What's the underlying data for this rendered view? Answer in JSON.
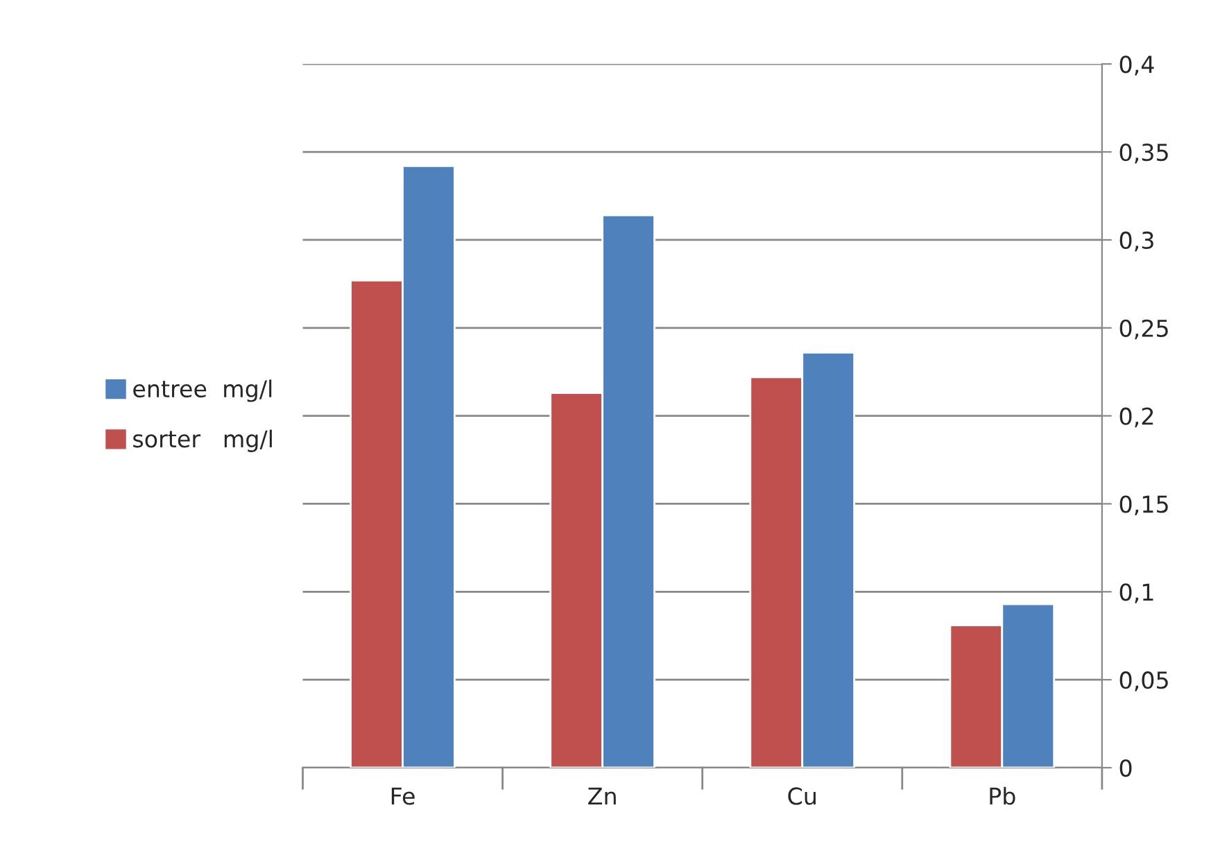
{
  "chart_data": {
    "type": "bar",
    "categories": [
      "Fe",
      "Zn",
      "Cu",
      "Pb"
    ],
    "series": [
      {
        "name": "sorter   mg/l",
        "color": "#c0504d",
        "values": [
          0.277,
          0.213,
          0.222,
          0.081
        ]
      },
      {
        "name": "entree  mg/l",
        "color": "#4f81bd",
        "values": [
          0.342,
          0.314,
          0.236,
          0.093
        ]
      }
    ],
    "ylim": [
      0,
      0.4
    ],
    "yticks": [
      {
        "value": 0,
        "label": "0"
      },
      {
        "value": 0.05,
        "label": "0,05"
      },
      {
        "value": 0.1,
        "label": "0,1"
      },
      {
        "value": 0.15,
        "label": "0,15"
      },
      {
        "value": 0.2,
        "label": "0,2"
      },
      {
        "value": 0.25,
        "label": "0,25"
      },
      {
        "value": 0.3,
        "label": "0,3"
      },
      {
        "value": 0.35,
        "label": "0,35"
      },
      {
        "value": 0.4,
        "label": "0,4"
      }
    ],
    "grid": "y",
    "legend": "left"
  }
}
